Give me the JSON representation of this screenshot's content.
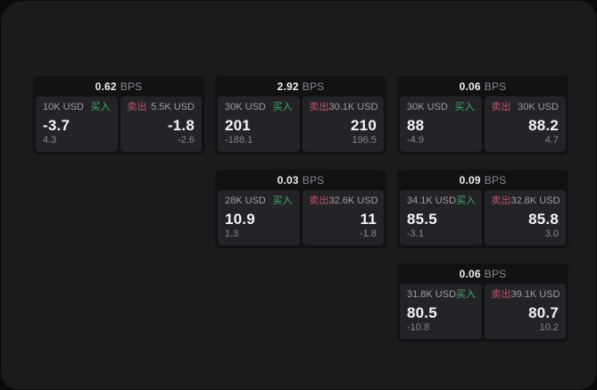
{
  "theme": {
    "outer_bg": "#0a0a0b",
    "panel_bg": "#1b1b1d",
    "card_bg": "#121214",
    "tile_bg": "#242428",
    "accent_green": "#3fae68",
    "accent_red": "#bf536c"
  },
  "labels": {
    "bps_unit": "BPS",
    "buy": "买入",
    "sell": "卖出"
  },
  "cards": [
    {
      "row": 1,
      "col": 1,
      "bps": "0.62",
      "buy": {
        "size": "10K USD",
        "value": "-3.7",
        "delta": "4.3"
      },
      "sell": {
        "size": "5.5K USD",
        "value": "-1.8",
        "delta": "-2.6"
      }
    },
    {
      "row": 1,
      "col": 2,
      "bps": "2.92",
      "buy": {
        "size": "30K USD",
        "value": "201",
        "delta": "-188.1"
      },
      "sell": {
        "size": "30.1K USD",
        "value": "210",
        "delta": "196.5"
      }
    },
    {
      "row": 1,
      "col": 3,
      "bps": "0.06",
      "buy": {
        "size": "30K USD",
        "value": "88",
        "delta": "-4.9"
      },
      "sell": {
        "size": "30K USD",
        "value": "88.2",
        "delta": "4.7"
      }
    },
    {
      "row": 2,
      "col": 2,
      "bps": "0.03",
      "buy": {
        "size": "28K USD",
        "value": "10.9",
        "delta": "1.3"
      },
      "sell": {
        "size": "32.6K USD",
        "value": "11",
        "delta": "-1.8"
      }
    },
    {
      "row": 2,
      "col": 3,
      "bps": "0.09",
      "buy": {
        "size": "34.1K USD",
        "value": "85.5",
        "delta": "-3.1"
      },
      "sell": {
        "size": "32.8K USD",
        "value": "85.8",
        "delta": "3.0"
      }
    },
    {
      "row": 3,
      "col": 3,
      "bps": "0.06",
      "buy": {
        "size": "31.8K USD",
        "value": "80.5",
        "delta": "-10.8"
      },
      "sell": {
        "size": "39.1K USD",
        "value": "80.7",
        "delta": "10.2"
      }
    }
  ]
}
